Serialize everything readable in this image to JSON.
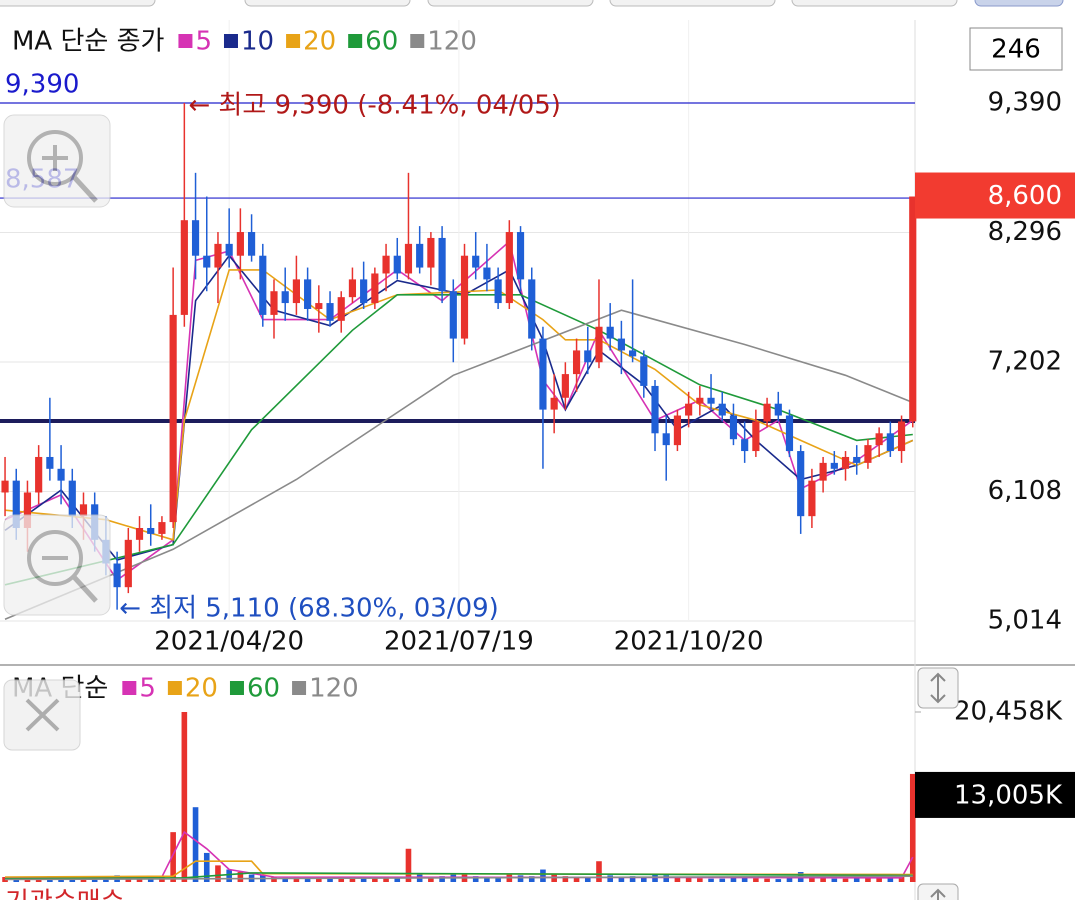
{
  "chart_data": {
    "type": "candlestick",
    "legend_title": "MA 단순 종가",
    "count_label": 246,
    "up_color": "#e8322d",
    "down_color": "#1f5fd6",
    "ylim": [
      4685,
      10091
    ],
    "yticks": [
      {
        "value": 9390,
        "label": "9,390"
      },
      {
        "value": 8296,
        "label": "8,296"
      },
      {
        "value": 7202,
        "label": "7,202"
      },
      {
        "value": 6108,
        "label": "6,108"
      },
      {
        "value": 5014,
        "label": "5,014"
      }
    ],
    "xlim": [
      -0.45,
      81.2
    ],
    "xticks": [
      {
        "value": 20,
        "label": "2021/04/20"
      },
      {
        "value": 40.5,
        "label": "2021/07/19"
      },
      {
        "value": 61,
        "label": "2021/10/20"
      }
    ],
    "grid": true,
    "ohlc": [
      [
        6100,
        6400,
        5900,
        6200
      ],
      [
        6200,
        6300,
        5700,
        5800
      ],
      [
        5800,
        6200,
        5600,
        6100
      ],
      [
        6100,
        6500,
        6000,
        6400
      ],
      [
        6400,
        6900,
        6200,
        6300
      ],
      [
        6300,
        6500,
        6000,
        6200
      ],
      [
        6200,
        6300,
        5800,
        5900
      ],
      [
        5900,
        6100,
        5700,
        6000
      ],
      [
        6000,
        6100,
        5600,
        5700
      ],
      [
        5700,
        5900,
        5400,
        5500
      ],
      [
        5500,
        5600,
        5110,
        5300
      ],
      [
        5300,
        5800,
        5250,
        5700
      ],
      [
        5700,
        5900,
        5600,
        5800
      ],
      [
        5800,
        6000,
        5650,
        5750
      ],
      [
        5750,
        5900,
        5700,
        5850
      ],
      [
        5850,
        8000,
        5800,
        7600
      ],
      [
        7600,
        9390,
        7500,
        8400
      ],
      [
        8400,
        8800,
        7900,
        8100
      ],
      [
        8100,
        8600,
        7800,
        8000
      ],
      [
        8000,
        8300,
        7700,
        8200
      ],
      [
        8200,
        8500,
        8000,
        8100
      ],
      [
        8100,
        8500,
        7900,
        8300
      ],
      [
        8300,
        8450,
        8050,
        8100
      ],
      [
        8100,
        8200,
        7500,
        7600
      ],
      [
        7600,
        7900,
        7400,
        7800
      ],
      [
        7800,
        8000,
        7550,
        7700
      ],
      [
        7700,
        8100,
        7600,
        7900
      ],
      [
        7900,
        8000,
        7550,
        7650
      ],
      [
        7650,
        7850,
        7450,
        7700
      ],
      [
        7700,
        7800,
        7500,
        7550
      ],
      [
        7550,
        7800,
        7450,
        7750
      ],
      [
        7750,
        8000,
        7700,
        7900
      ],
      [
        7900,
        8050,
        7650,
        7700
      ],
      [
        7700,
        8000,
        7650,
        7950
      ],
      [
        7950,
        8200,
        7800,
        8100
      ],
      [
        8100,
        8250,
        7900,
        7950
      ],
      [
        7950,
        8800,
        7900,
        8200
      ],
      [
        8200,
        8350,
        7950,
        8000
      ],
      [
        8000,
        8300,
        7850,
        8250
      ],
      [
        8250,
        8350,
        7700,
        7800
      ],
      [
        7800,
        7900,
        7200,
        7400
      ],
      [
        7400,
        8200,
        7350,
        8100
      ],
      [
        8100,
        8300,
        7900,
        8000
      ],
      [
        8000,
        8200,
        7800,
        7900
      ],
      [
        7900,
        8000,
        7650,
        7700
      ],
      [
        7700,
        8400,
        7650,
        8300
      ],
      [
        8300,
        8350,
        7800,
        7900
      ],
      [
        7900,
        8000,
        7300,
        7400
      ],
      [
        7400,
        7500,
        6300,
        6800
      ],
      [
        6800,
        7100,
        6600,
        6900
      ],
      [
        6900,
        7200,
        6800,
        7100
      ],
      [
        7100,
        7400,
        6950,
        7300
      ],
      [
        7300,
        7500,
        7100,
        7200
      ],
      [
        7200,
        7900,
        7150,
        7500
      ],
      [
        7500,
        7700,
        7300,
        7400
      ],
      [
        7400,
        7550,
        7100,
        7300
      ],
      [
        7300,
        7900,
        7200,
        7250
      ],
      [
        7250,
        7300,
        6900,
        7000
      ],
      [
        7000,
        7050,
        6450,
        6600
      ],
      [
        6600,
        6750,
        6200,
        6500
      ],
      [
        6500,
        6800,
        6450,
        6750
      ],
      [
        6750,
        6950,
        6650,
        6850
      ],
      [
        6850,
        7000,
        6750,
        6900
      ],
      [
        6900,
        7100,
        6800,
        6850
      ],
      [
        6850,
        6950,
        6700,
        6750
      ],
      [
        6750,
        6850,
        6500,
        6550
      ],
      [
        6550,
        6700,
        6350,
        6450
      ],
      [
        6450,
        6800,
        6400,
        6700
      ],
      [
        6700,
        6900,
        6650,
        6850
      ],
      [
        6850,
        6950,
        6700,
        6750
      ],
      [
        6750,
        6800,
        6400,
        6450
      ],
      [
        6450,
        6500,
        5750,
        5900
      ],
      [
        5900,
        6300,
        5800,
        6200
      ],
      [
        6200,
        6400,
        6100,
        6350
      ],
      [
        6350,
        6450,
        6250,
        6300
      ],
      [
        6300,
        6450,
        6200,
        6400
      ],
      [
        6400,
        6500,
        6250,
        6350
      ],
      [
        6350,
        6550,
        6300,
        6500
      ],
      [
        6500,
        6650,
        6400,
        6600
      ],
      [
        6600,
        6700,
        6400,
        6450
      ],
      [
        6450,
        6750,
        6350,
        6700
      ],
      [
        6700,
        8600,
        6650,
        8600
      ]
    ],
    "ma_series": [
      {
        "name": "5",
        "color": "#d633b4",
        "x": [
          0,
          5,
          10,
          15,
          17,
          20,
          23,
          29,
          35,
          39,
          45,
          48,
          50,
          53,
          58,
          62,
          66,
          69,
          71,
          76,
          81
        ],
        "values": [
          5870,
          6080,
          5360,
          5700,
          8060,
          8140,
          7560,
          7560,
          7980,
          7720,
          8220,
          7050,
          6800,
          7470,
          6710,
          6880,
          6540,
          6710,
          6130,
          6370,
          6710
        ]
      },
      {
        "name": "10",
        "color": "#1a2a8c",
        "x": [
          0,
          5,
          10,
          15,
          17,
          20,
          24,
          29,
          35,
          41,
          45,
          48,
          50,
          53,
          57,
          60,
          64,
          67,
          71,
          76,
          81
        ],
        "values": [
          5780,
          6120,
          5530,
          5660,
          7720,
          8100,
          7640,
          7510,
          7890,
          7770,
          7980,
          7390,
          6800,
          7300,
          7010,
          6630,
          6840,
          6540,
          6210,
          6330,
          6540
        ]
      },
      {
        "name": "20",
        "color": "#e8a317",
        "x": [
          0,
          9,
          15,
          16,
          20,
          23,
          29,
          35,
          44,
          48,
          50,
          53,
          58,
          62,
          67,
          71,
          76,
          81
        ],
        "values": [
          5950,
          5870,
          5700,
          6710,
          7980,
          7980,
          7560,
          7770,
          7810,
          7560,
          7390,
          7390,
          7140,
          6840,
          6710,
          6540,
          6330,
          6540
        ]
      },
      {
        "name": "60",
        "color": "#1f9a3a",
        "x": [
          0,
          15,
          22,
          31,
          35,
          46,
          53,
          62,
          69,
          76,
          81
        ],
        "values": [
          5320,
          5660,
          6630,
          7470,
          7770,
          7770,
          7470,
          7010,
          6800,
          6540,
          6590
        ]
      },
      {
        "name": "120",
        "color": "#8a8a8a",
        "x": [
          0,
          15,
          26,
          40,
          55,
          66,
          75,
          81
        ],
        "values": [
          5030,
          5620,
          6210,
          7090,
          7640,
          7350,
          7090,
          6860
        ]
      }
    ],
    "hlines": [
      {
        "value": 9390,
        "label": "9,390"
      },
      {
        "value": 8587,
        "label": "8,587"
      }
    ],
    "support_line": {
      "value": 6704
    },
    "current_price": {
      "value": 8600,
      "label": "8,600"
    },
    "high_note": "← 최고 9,390 (-8.41%, 04/05)",
    "low_note": "← 최저 5,110 (68.30%, 03/09)",
    "volume": {
      "legend_title": "MA 단순",
      "ylim": [
        0,
        23105
      ],
      "yticks": [
        {
          "value": 20458,
          "label": "20,458K"
        }
      ],
      "current": {
        "value": 13005,
        "label": "13,005K"
      },
      "values": [
        600,
        500,
        400,
        450,
        700,
        500,
        400,
        350,
        500,
        600,
        800,
        700,
        500,
        400,
        600,
        6000,
        20458,
        9000,
        3500,
        2000,
        1500,
        1200,
        900,
        800,
        600,
        500,
        500,
        450,
        400,
        400,
        500,
        600,
        500,
        450,
        500,
        550,
        4000,
        900,
        600,
        700,
        900,
        1000,
        700,
        600,
        550,
        900,
        800,
        700,
        1500,
        900,
        700,
        600,
        500,
        2500,
        800,
        600,
        700,
        500,
        900,
        800,
        600,
        500,
        450,
        400,
        400,
        500,
        600,
        450,
        400,
        350,
        500,
        1200,
        700,
        500,
        400,
        400,
        450,
        500,
        500,
        450,
        600,
        13005
      ],
      "ma_series": [
        {
          "name": "5",
          "color": "#d633b4",
          "x": [
            0,
            14,
            16,
            18,
            20,
            24,
            80,
            81
          ],
          "values": [
            500,
            600,
            6000,
            4000,
            1500,
            600,
            500,
            3000
          ]
        },
        {
          "name": "20",
          "color": "#e8a317",
          "x": [
            0,
            15,
            17,
            22,
            23,
            81
          ],
          "values": [
            600,
            700,
            2500,
            2500,
            1000,
            900
          ]
        },
        {
          "name": "60",
          "color": "#1f9a3a",
          "x": [
            0,
            16,
            22,
            81
          ],
          "values": [
            400,
            500,
            1100,
            800
          ]
        },
        {
          "name": "120",
          "color": "#8a8a8a",
          "x": [
            0,
            81
          ],
          "values": [
            300,
            700
          ]
        }
      ]
    },
    "bottom_label": "기관순매수"
  }
}
